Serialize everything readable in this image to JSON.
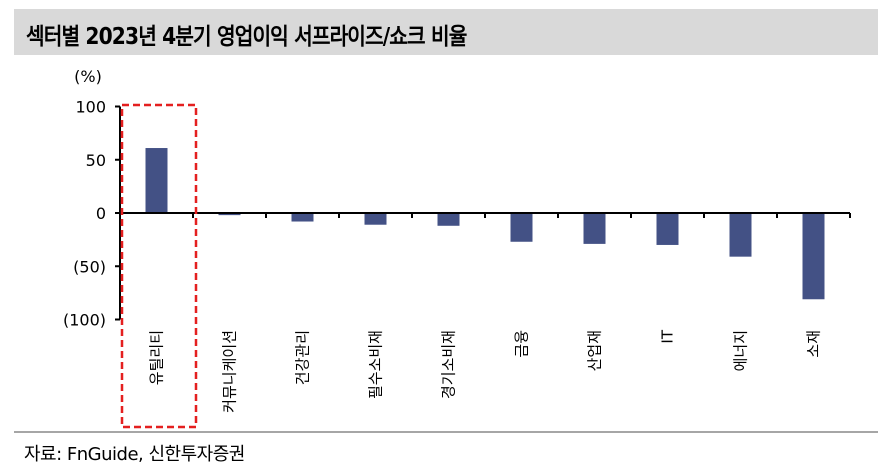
{
  "title": "섹터별 2023년 4분기 영업이익 서프라이즈/쇼크 비율",
  "source": "자료: FnGuide, 신한투자증권",
  "colors": {
    "bar": "#435185",
    "highlight": "#e41f1f",
    "title_bg": "#d9d9d9"
  },
  "chart_data": {
    "type": "bar",
    "title": "섹터별 2023년 4분기 영업이익 서프라이즈/쇼크 비율",
    "ylabel": "(%)",
    "xlabel": "",
    "ylim": [
      -100,
      100
    ],
    "yticks": [
      100,
      50,
      0,
      -50,
      -100
    ],
    "ytick_labels": [
      "100",
      "50",
      "0",
      "(50)",
      "(100)"
    ],
    "categories": [
      "유틸리티",
      "커뮤니케이션",
      "건강관리",
      "필수소비재",
      "경기소비재",
      "금융",
      "산업재",
      "IT",
      "에너지",
      "소재"
    ],
    "values": [
      61,
      -2,
      -8,
      -11,
      -12,
      -27,
      -29,
      -30,
      -41,
      -81
    ],
    "highlighted_category": "유틸리티",
    "grid": false,
    "legend": null
  }
}
